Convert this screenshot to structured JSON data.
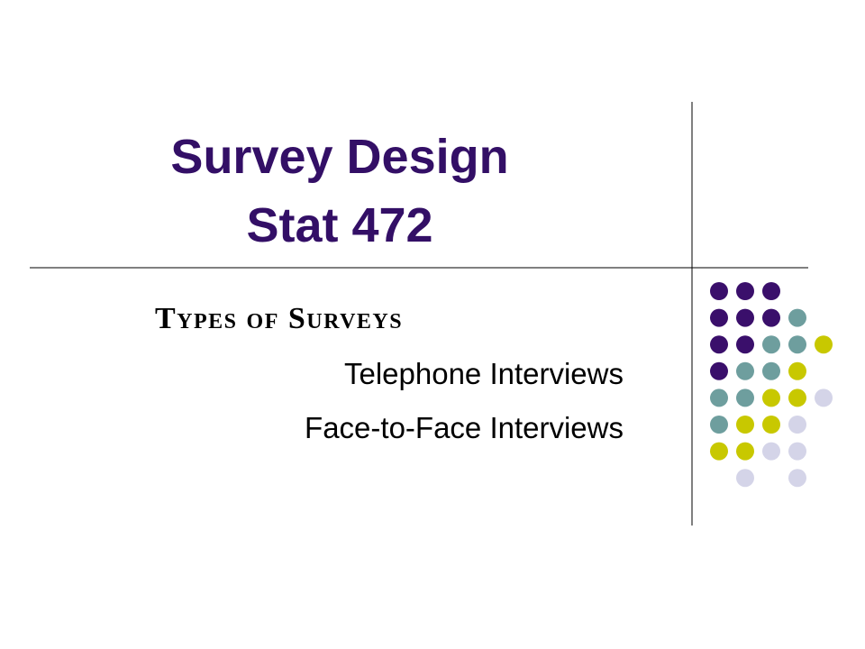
{
  "title": {
    "line1": "Survey Design",
    "line2": "Stat 472"
  },
  "subtitle": "Types of Surveys",
  "items": [
    "Telephone Interviews",
    "Face-to-Face Interviews"
  ]
}
